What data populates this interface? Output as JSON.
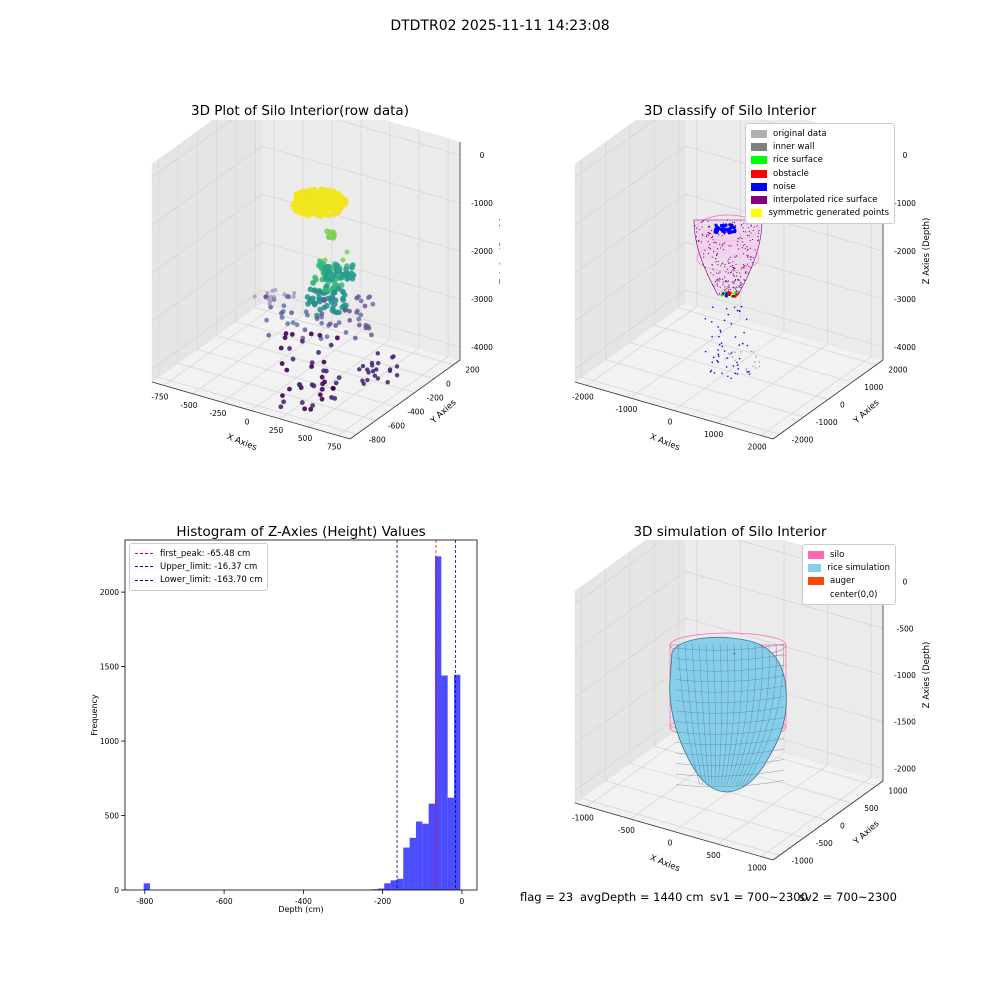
{
  "suptitle": "DTDTR02 2025-11-11 14:23:08",
  "panels": {
    "p1": {
      "title": "3D Plot of Silo Interior(row data)",
      "xlabel": "X Axies",
      "ylabel": "Y Axies",
      "zlabel": "Z Axies (Depth)",
      "xticks": [
        "-750",
        "-500",
        "-250",
        "0",
        "250",
        "500",
        "750"
      ],
      "yticks": [
        "-800",
        "-600",
        "-400",
        "-200",
        "0",
        "200"
      ],
      "zticks": [
        "0",
        "-1000",
        "-2000",
        "-3000",
        "-4000"
      ]
    },
    "p2": {
      "title": "3D classify of Silo Interior",
      "xlabel": "X Axies",
      "ylabel": "Y Axies",
      "zlabel": "Z Axies (Depth)",
      "xticks": [
        "-2000",
        "-1000",
        "0",
        "1000",
        "2000"
      ],
      "yticks": [
        "-2000",
        "-1000",
        "0",
        "1000",
        "2000"
      ],
      "zticks": [
        "0",
        "-1000",
        "-2000",
        "-3000",
        "-4000"
      ],
      "legend": [
        {
          "label": "original data",
          "color": "#b0b0b0"
        },
        {
          "label": "inner wall",
          "color": "#808080"
        },
        {
          "label": "rice surface",
          "color": "#00ff00"
        },
        {
          "label": "obstacle",
          "color": "#ff0000"
        },
        {
          "label": "noise",
          "color": "#0000ff"
        },
        {
          "label": "interpolated rice surface",
          "color": "#800080"
        },
        {
          "label": "symmetric generated points",
          "color": "#ffff00"
        }
      ]
    },
    "p3": {
      "title": "Histogram of Z-Axies (Height) Values",
      "legend": [
        {
          "label": "first_peak: -65.48 cm",
          "color": "#ff0000"
        },
        {
          "label": "Upper_limit: -16.37 cm",
          "color": "#00008b"
        },
        {
          "label": "Lower_limit: -163.70 cm",
          "color": "#00008b"
        }
      ]
    },
    "p4": {
      "title": "3D simulation of Silo Interior",
      "xlabel": "X Axies",
      "ylabel": "Y Axies",
      "zlabel": "Z Axies (Depth)",
      "xticks": [
        "-1000",
        "-500",
        "0",
        "500",
        "1000"
      ],
      "yticks": [
        "-1000",
        "-500",
        "0",
        "500",
        "1000"
      ],
      "zticks": [
        "0",
        "-500",
        "-1000",
        "-1500",
        "-2000"
      ],
      "legend": [
        {
          "label": "silo",
          "color": "#ff69b4"
        },
        {
          "label": "rice simulation",
          "color": "#87ceeb"
        },
        {
          "label": "auger",
          "color": "#ff4500"
        },
        {
          "label": "center(0,0)",
          "color": "#ffffff"
        }
      ]
    }
  },
  "chart_data": {
    "type": "bar",
    "title": "Histogram of Z-Axies (Height) Values",
    "xlabel": "Depth (cm)",
    "ylabel": "Frequency",
    "xlim": [
      -850,
      38
    ],
    "ylim": [
      0,
      2350
    ],
    "xticks": [
      -800,
      -600,
      -400,
      -200,
      0
    ],
    "yticks": [
      0,
      500,
      1000,
      1500,
      2000
    ],
    "bin_width": 16,
    "bar_color": "#0000ff",
    "bars": [
      {
        "x0": -803,
        "count": 45
      },
      {
        "x0": -228,
        "count": 5
      },
      {
        "x0": -212,
        "count": 10
      },
      {
        "x0": -196,
        "count": 45
      },
      {
        "x0": -180,
        "count": 65
      },
      {
        "x0": -164,
        "count": 75
      },
      {
        "x0": -148,
        "count": 285
      },
      {
        "x0": -132,
        "count": 350
      },
      {
        "x0": -116,
        "count": 460
      },
      {
        "x0": -100,
        "count": 445
      },
      {
        "x0": -84,
        "count": 580
      },
      {
        "x0": -68,
        "count": 2240
      },
      {
        "x0": -52,
        "count": 1440
      },
      {
        "x0": -36,
        "count": 620
      },
      {
        "x0": -20,
        "count": 1445
      }
    ],
    "vlines": [
      {
        "name": "first_peak",
        "x": -65.48,
        "color": "#ff0000"
      },
      {
        "name": "Upper_limit",
        "x": -16.37,
        "color": "#00008b"
      },
      {
        "name": "Lower_limit",
        "x": -163.7,
        "color": "#00008b"
      }
    ]
  },
  "footer": {
    "flag": "flag = 23",
    "avg": "avgDepth = 1440 cm",
    "sv1": "sv1 = 700~2300",
    "sv2": "sv2 = 700~2300"
  }
}
